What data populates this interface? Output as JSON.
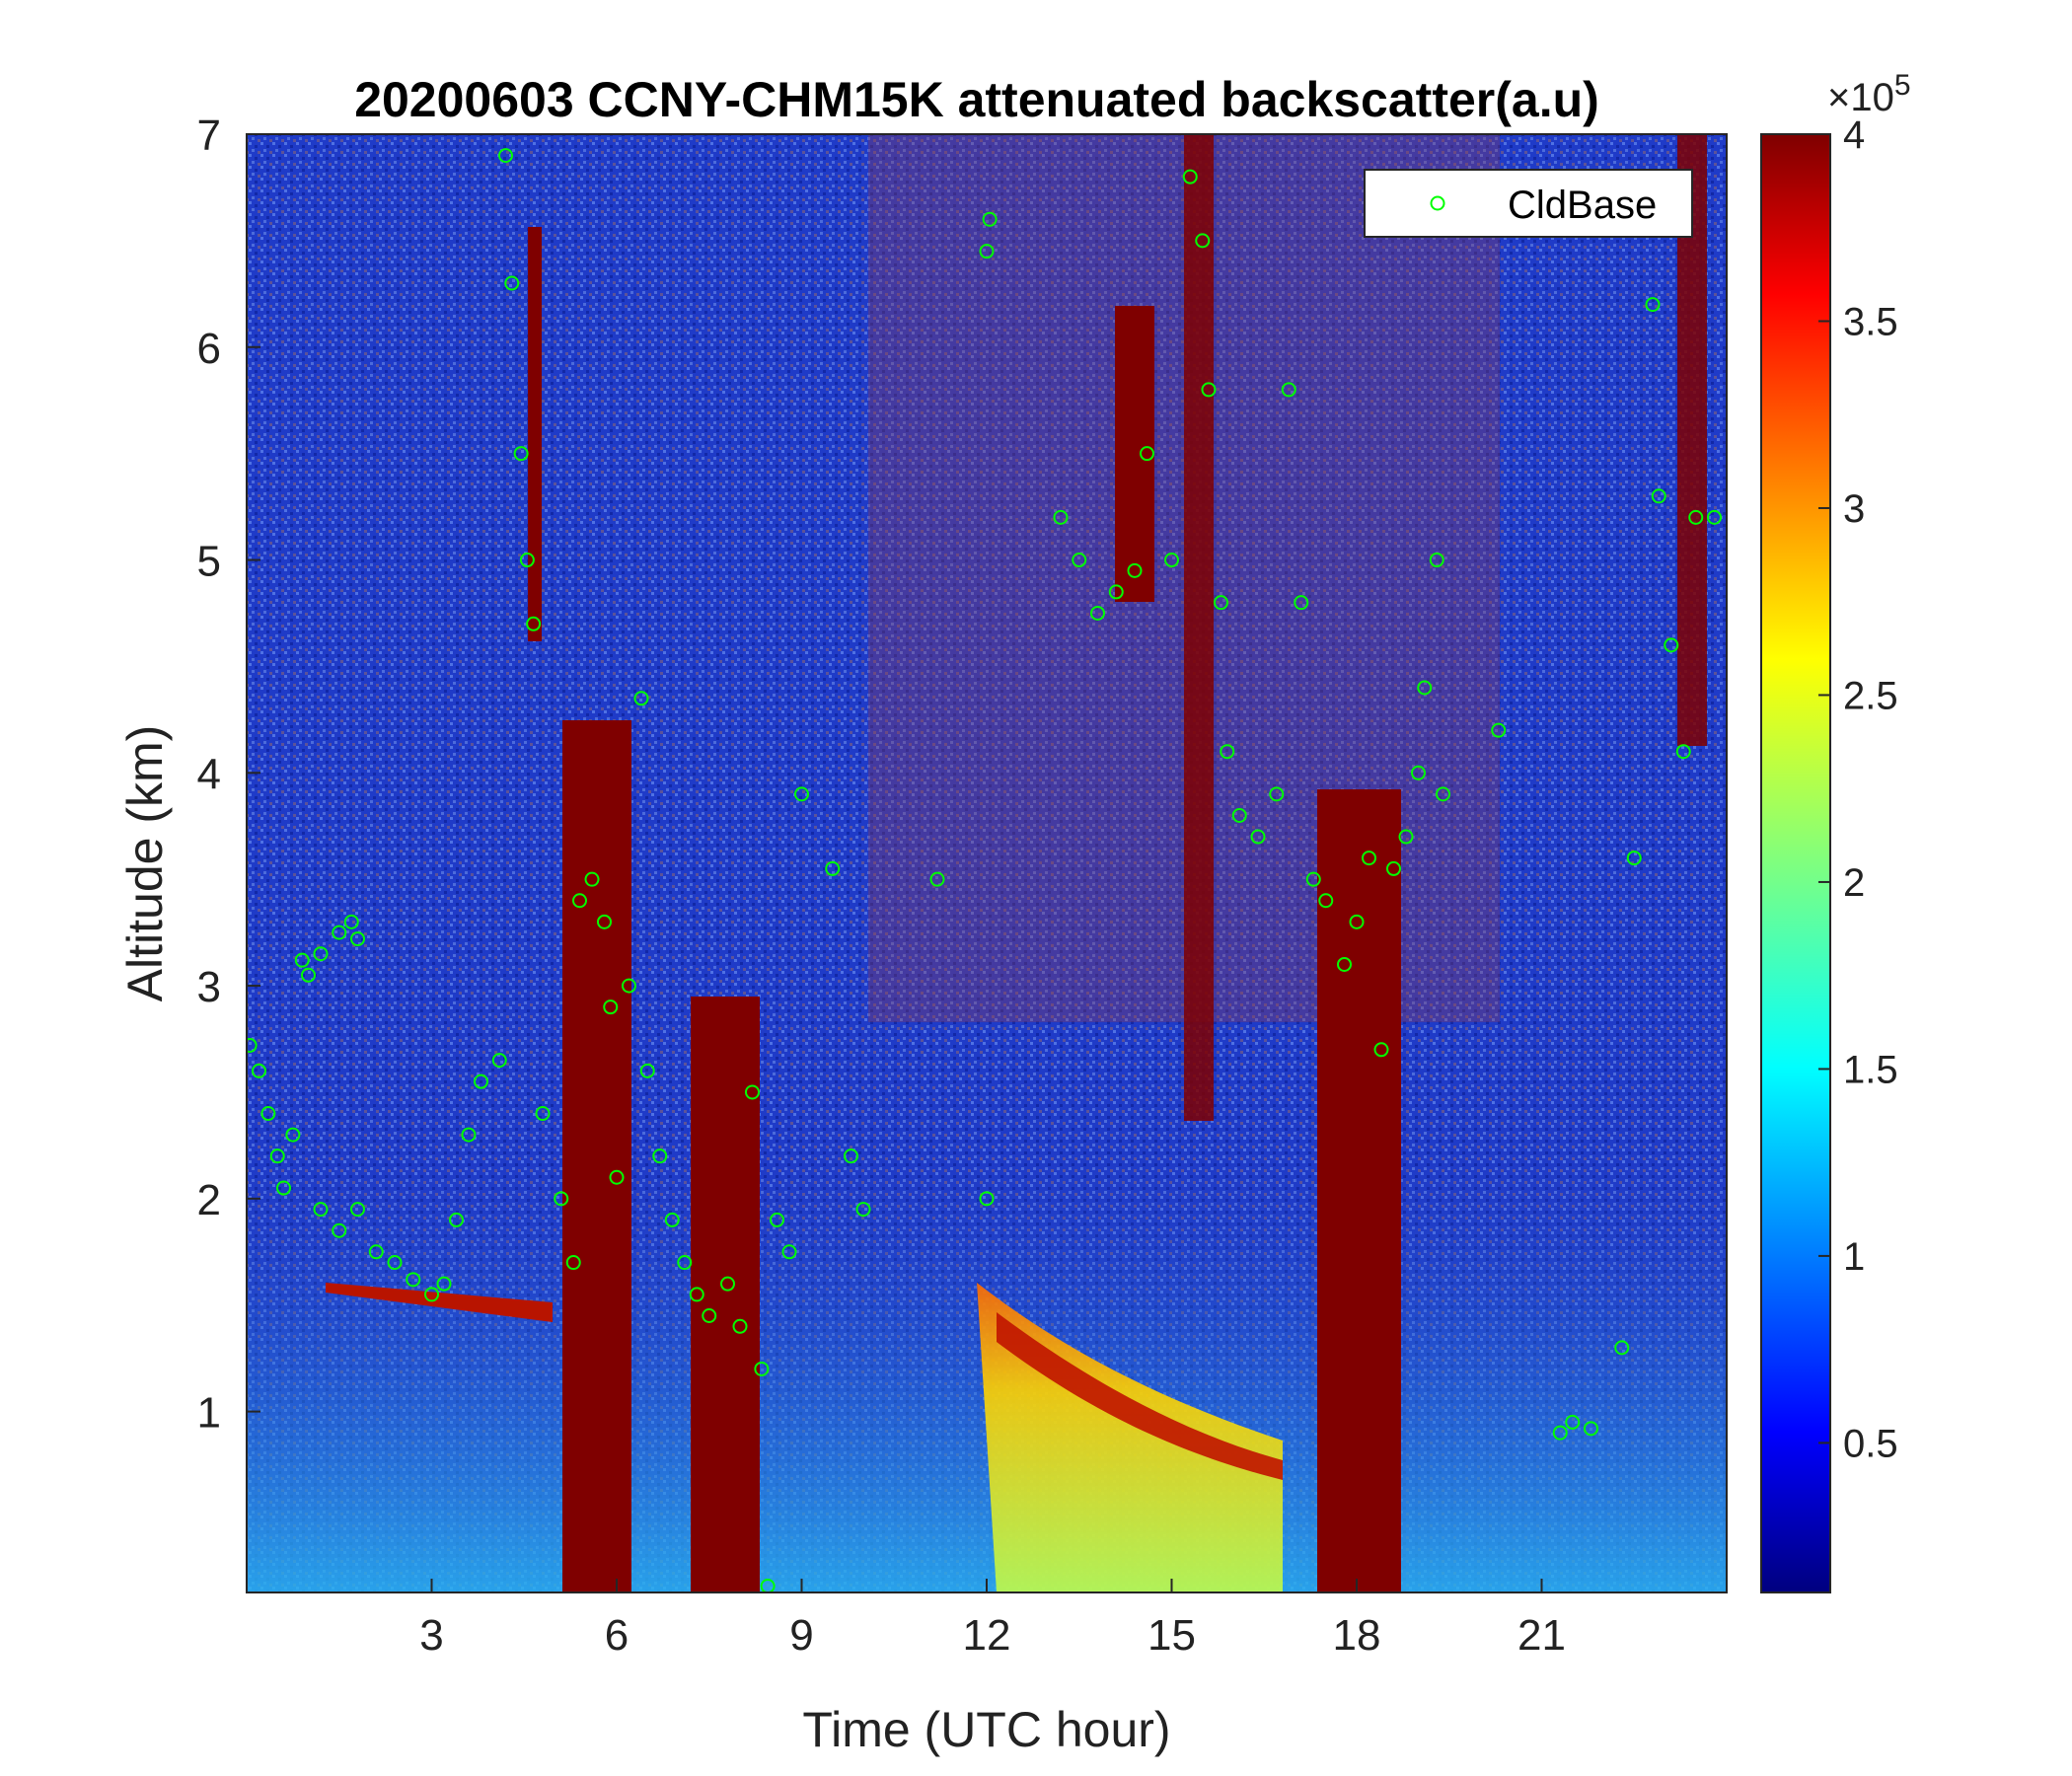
{
  "chart_data": {
    "type": "heatmap",
    "title": "20200603 CCNY-CHM15K attenuated backscatter(a.u)",
    "xlabel": "Time (UTC hour)",
    "ylabel": "Altitude (km)",
    "xlim": [
      0,
      24
    ],
    "ylim": [
      0.15,
      7
    ],
    "xticks": [
      "3",
      "6",
      "9",
      "12",
      "15",
      "18",
      "21"
    ],
    "xtick_values": [
      3,
      6,
      9,
      12,
      15,
      18,
      21
    ],
    "yticks": [
      "1",
      "2",
      "3",
      "4",
      "5",
      "6",
      "7"
    ],
    "ytick_values": [
      1,
      2,
      3,
      4,
      5,
      6,
      7
    ],
    "colormap": "jet",
    "colorbar": {
      "min": 0.1,
      "max": 4,
      "exponent_label": "×10",
      "exponent_power": "5",
      "ticks": [
        "0.5",
        "1",
        "1.5",
        "2",
        "2.5",
        "3",
        "3.5",
        "4"
      ],
      "tick_values": [
        0.5,
        1,
        1.5,
        2,
        2.5,
        3,
        3.5,
        4
      ]
    },
    "legend": {
      "position": "top-right",
      "entries": [
        "CldBase"
      ],
      "marker": "circle",
      "color": "#00ff00"
    },
    "series": [
      {
        "name": "CldBase",
        "type": "scatter",
        "color": "#00ff00",
        "points": [
          [
            0.05,
            2.72
          ],
          [
            0.2,
            2.6
          ],
          [
            0.35,
            2.4
          ],
          [
            0.5,
            2.2
          ],
          [
            0.6,
            2.05
          ],
          [
            0.75,
            2.3
          ],
          [
            0.9,
            3.12
          ],
          [
            1.0,
            3.05
          ],
          [
            1.2,
            3.15
          ],
          [
            1.5,
            3.25
          ],
          [
            1.7,
            3.3
          ],
          [
            1.8,
            3.22
          ],
          [
            1.2,
            1.95
          ],
          [
            1.5,
            1.85
          ],
          [
            1.8,
            1.95
          ],
          [
            2.1,
            1.75
          ],
          [
            2.4,
            1.7
          ],
          [
            2.7,
            1.62
          ],
          [
            3.0,
            1.55
          ],
          [
            3.2,
            1.6
          ],
          [
            3.4,
            1.9
          ],
          [
            3.6,
            2.3
          ],
          [
            3.8,
            2.55
          ],
          [
            4.1,
            2.65
          ],
          [
            4.2,
            6.9
          ],
          [
            4.3,
            6.3
          ],
          [
            4.45,
            5.5
          ],
          [
            4.55,
            5.0
          ],
          [
            4.65,
            4.7
          ],
          [
            4.8,
            2.4
          ],
          [
            5.1,
            2.0
          ],
          [
            5.3,
            1.7
          ],
          [
            5.4,
            3.4
          ],
          [
            5.6,
            3.5
          ],
          [
            5.8,
            3.3
          ],
          [
            5.9,
            2.9
          ],
          [
            6.0,
            2.1
          ],
          [
            6.2,
            3.0
          ],
          [
            6.4,
            4.35
          ],
          [
            6.5,
            2.6
          ],
          [
            6.7,
            2.2
          ],
          [
            6.9,
            1.9
          ],
          [
            7.1,
            1.7
          ],
          [
            7.3,
            1.55
          ],
          [
            7.5,
            1.45
          ],
          [
            7.8,
            1.6
          ],
          [
            8.0,
            1.4
          ],
          [
            8.2,
            2.5
          ],
          [
            8.35,
            1.2
          ],
          [
            8.45,
            0.18
          ],
          [
            8.6,
            1.9
          ],
          [
            8.8,
            1.75
          ],
          [
            9.0,
            3.9
          ],
          [
            9.5,
            3.55
          ],
          [
            9.8,
            2.2
          ],
          [
            10.0,
            1.95
          ],
          [
            11.2,
            3.5
          ],
          [
            12.0,
            2.0
          ],
          [
            12.0,
            6.45
          ],
          [
            12.05,
            6.6
          ],
          [
            13.2,
            5.2
          ],
          [
            13.5,
            5.0
          ],
          [
            13.8,
            4.75
          ],
          [
            14.1,
            4.85
          ],
          [
            14.4,
            4.95
          ],
          [
            14.6,
            5.5
          ],
          [
            15.0,
            5.0
          ],
          [
            15.3,
            6.8
          ],
          [
            15.5,
            6.5
          ],
          [
            15.6,
            5.8
          ],
          [
            15.8,
            4.8
          ],
          [
            15.9,
            4.1
          ],
          [
            16.1,
            3.8
          ],
          [
            16.4,
            3.7
          ],
          [
            16.7,
            3.9
          ],
          [
            16.9,
            5.8
          ],
          [
            17.1,
            4.8
          ],
          [
            17.3,
            3.5
          ],
          [
            17.5,
            3.4
          ],
          [
            17.8,
            3.1
          ],
          [
            18.0,
            3.3
          ],
          [
            18.2,
            3.6
          ],
          [
            18.4,
            2.7
          ],
          [
            18.6,
            3.55
          ],
          [
            18.8,
            3.7
          ],
          [
            19.0,
            4.0
          ],
          [
            19.1,
            4.4
          ],
          [
            19.3,
            5.0
          ],
          [
            19.4,
            3.9
          ],
          [
            20.3,
            4.2
          ],
          [
            21.3,
            0.9
          ],
          [
            21.5,
            0.95
          ],
          [
            21.8,
            0.92
          ],
          [
            22.3,
            1.3
          ],
          [
            22.5,
            3.6
          ],
          [
            22.8,
            6.2
          ],
          [
            22.9,
            5.3
          ],
          [
            23.1,
            4.6
          ],
          [
            23.3,
            4.1
          ],
          [
            23.5,
            5.2
          ],
          [
            23.8,
            5.2
          ]
        ]
      }
    ]
  }
}
